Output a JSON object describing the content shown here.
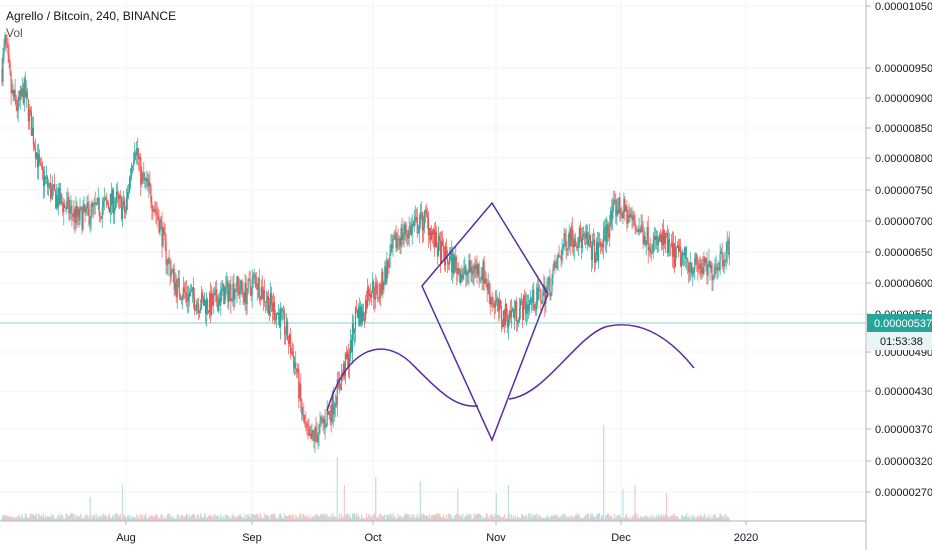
{
  "header": {
    "symbol_line": "Agrello / Bitcoin, 240, BINANCE",
    "indicator": "Vol"
  },
  "colors": {
    "up": "#26a69a",
    "down": "#ef5350",
    "drawing": "#5b2a9e",
    "price_line": "#26a69a",
    "badge_bg": "#26a69a",
    "badge_text": "#ffffff",
    "time_badge_bg": "#e8f5f4",
    "grid": "#f0f3fa",
    "axis_text": "#131722"
  },
  "chart_data": {
    "type": "candlestick",
    "pair": "Agrello / Bitcoin",
    "timeframe": "240",
    "exchange": "BINANCE",
    "x_ticks": [
      "Aug",
      "Sep",
      "Oct",
      "Nov",
      "Dec",
      "2020"
    ],
    "y_ticks": [
      "0.00001050",
      "0.00000950",
      "0.00000900",
      "0.00000850",
      "0.00000800",
      "0.00000750",
      "0.00000700",
      "0.00000650",
      "0.00000600",
      "0.00000550",
      "0.00000490",
      "0.00000430",
      "0.00000370",
      "0.00000320",
      "0.00000270"
    ],
    "last_price": "0.00000537",
    "countdown": "01:53:38",
    "y_scale": "log",
    "grid": true,
    "price_path": [
      [
        0.0,
        880
      ],
      [
        0.5,
        950
      ],
      [
        1.5,
        820
      ],
      [
        2.5,
        790
      ],
      [
        3.5,
        830
      ],
      [
        4.5,
        760
      ],
      [
        6.0,
        660
      ],
      [
        8.0,
        620
      ],
      [
        10.0,
        600
      ],
      [
        12.0,
        580
      ],
      [
        14.0,
        590
      ],
      [
        16.0,
        600
      ],
      [
        18.0,
        610
      ],
      [
        19.5,
        590
      ],
      [
        21.0,
        720
      ],
      [
        22.0,
        650
      ],
      [
        23.5,
        620
      ],
      [
        25.0,
        570
      ],
      [
        26.0,
        520
      ],
      [
        27.5,
        480
      ],
      [
        29.0,
        470
      ],
      [
        31.0,
        460
      ],
      [
        33.0,
        455
      ],
      [
        35.0,
        470
      ],
      [
        37.0,
        480
      ],
      [
        38.5,
        470
      ],
      [
        40.0,
        490
      ],
      [
        42.0,
        460
      ],
      [
        44.0,
        440
      ],
      [
        45.0,
        420
      ],
      [
        46.5,
        380
      ],
      [
        47.5,
        330
      ],
      [
        48.5,
        310
      ],
      [
        50.0,
        320
      ],
      [
        52.0,
        340
      ],
      [
        53.5,
        370
      ],
      [
        55.0,
        400
      ],
      [
        56.0,
        450
      ],
      [
        57.0,
        440
      ],
      [
        58.0,
        480
      ],
      [
        59.5,
        470
      ],
      [
        61.0,
        510
      ],
      [
        62.5,
        550
      ],
      [
        64.0,
        560
      ],
      [
        65.5,
        570
      ],
      [
        67.0,
        580
      ],
      [
        68.5,
        540
      ],
      [
        70.0,
        520
      ],
      [
        71.5,
        510
      ],
      [
        73.0,
        495
      ],
      [
        74.5,
        505
      ],
      [
        76.0,
        500
      ],
      [
        77.0,
        470
      ],
      [
        78.0,
        455
      ],
      [
        79.0,
        440
      ],
      [
        80.5,
        445
      ],
      [
        82.0,
        450
      ],
      [
        83.5,
        460
      ],
      [
        85.0,
        465
      ],
      [
        86.5,
        480
      ],
      [
        88.0,
        520
      ],
      [
        89.5,
        555
      ],
      [
        91.0,
        550
      ],
      [
        92.5,
        540
      ],
      [
        94.0,
        525
      ],
      [
        95.5,
        560
      ],
      [
        97.0,
        600
      ],
      [
        98.5,
        590
      ],
      [
        100.0,
        570
      ],
      [
        101.5,
        555
      ],
      [
        103.0,
        540
      ],
      [
        104.5,
        545
      ],
      [
        106.0,
        525
      ],
      [
        107.5,
        520
      ],
      [
        109.0,
        510
      ],
      [
        110.5,
        505
      ],
      [
        112.0,
        500
      ],
      [
        113.5,
        520
      ],
      [
        115.0,
        537
      ]
    ],
    "volume_spikes": [
      [
        14,
        0.6
      ],
      [
        19,
        0.9
      ],
      [
        53,
        1.6
      ],
      [
        54,
        0.9
      ],
      [
        59,
        1.1
      ],
      [
        66,
        1.0
      ],
      [
        72,
        0.8
      ],
      [
        78,
        0.7
      ],
      [
        80,
        0.9
      ],
      [
        95,
        2.4
      ],
      [
        98,
        0.8
      ],
      [
        100,
        0.9
      ],
      [
        105,
        0.7
      ]
    ]
  },
  "drawings": {
    "shapes": [
      "arc-left",
      "arc-right",
      "diamond"
    ]
  }
}
